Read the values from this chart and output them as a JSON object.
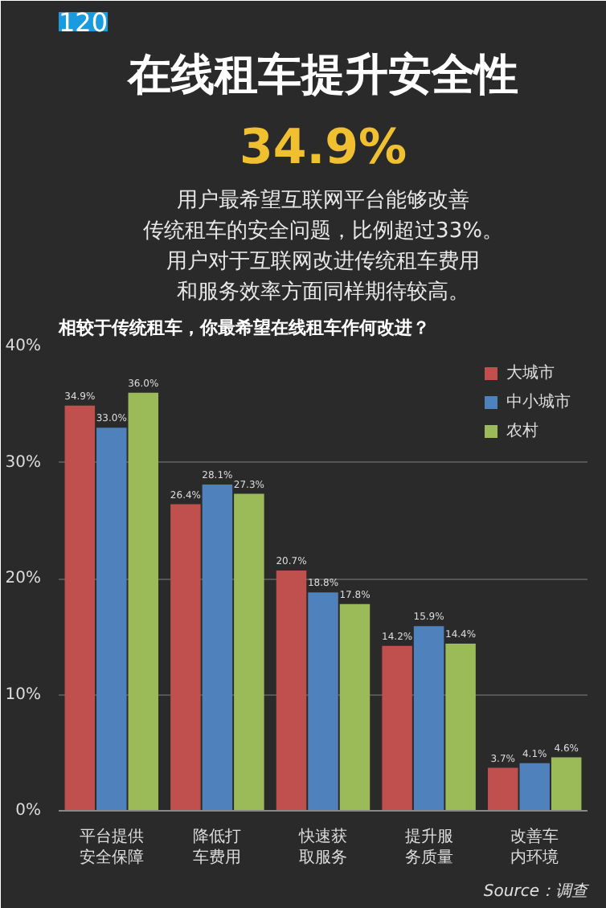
{
  "chart_data": {
    "type": "bar",
    "title": "在线租车提升安全性",
    "subtitle": "相较于传统租车，你最希望在线租车作何改进？",
    "annotations": [
      "120",
      "34.9%",
      "用户最希望互联网平台能够改善",
      "传统租车的安全问题，比例超过33%。",
      "用户对于互联网改进传统租车费用",
      "和服务效率方面同样期待较高。",
      "Source：调查"
    ],
    "categories": [
      "平台提供安全保障",
      "降低打车费用",
      "快速获取服务",
      "提升服务质量",
      "改善车内环境"
    ],
    "series": [
      {
        "name": "大城市",
        "color": "#c0504d",
        "values": [
          34.9,
          26.4,
          20.7,
          14.2,
          3.7
        ],
        "value_labels": [
          "34.9%",
          "26.4%",
          "20.7%",
          "14.2%",
          "3.7%"
        ]
      },
      {
        "name": "中小城市",
        "color": "#4f81bd",
        "values": [
          33.0,
          28.1,
          18.8,
          15.9,
          4.1
        ],
        "value_labels": [
          "33.0%",
          "28.1%",
          "18.8%",
          "15.9%",
          "4.1%"
        ]
      },
      {
        "name": "农村",
        "color": "#9bbb59",
        "values": [
          36.0,
          27.3,
          17.8,
          14.4,
          4.6
        ],
        "value_labels": [
          "36.0%",
          "27.3%",
          "17.8%",
          "14.4%",
          "4.6%"
        ]
      }
    ],
    "ylim": [
      0,
      40
    ],
    "yticks": [
      {
        "value": 0,
        "label": "0%"
      },
      {
        "value": 10,
        "label": "10%"
      },
      {
        "value": 20,
        "label": "20%"
      },
      {
        "value": 30,
        "label": "30%"
      },
      {
        "value": 40,
        "label": "40%"
      }
    ],
    "grid": "y",
    "legend": "top right"
  }
}
